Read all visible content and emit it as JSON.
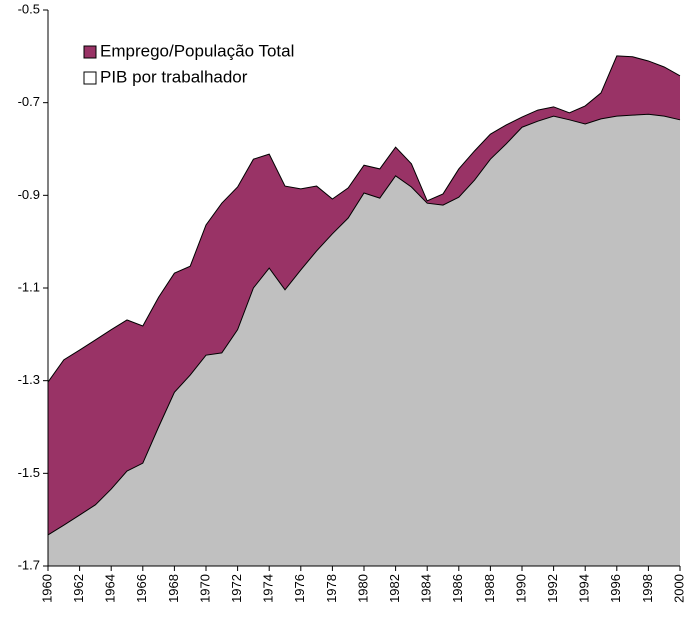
{
  "chart_data": {
    "type": "area",
    "x": [
      1960,
      1961,
      1962,
      1963,
      1964,
      1965,
      1966,
      1967,
      1968,
      1969,
      1970,
      1971,
      1972,
      1973,
      1974,
      1975,
      1976,
      1977,
      1978,
      1979,
      1980,
      1981,
      1982,
      1983,
      1984,
      1985,
      1986,
      1987,
      1988,
      1989,
      1990,
      1991,
      1992,
      1993,
      1994,
      1995,
      1996,
      1997,
      1998,
      1999,
      2000
    ],
    "xlim": [
      1960,
      2000
    ],
    "xticks": [
      1960,
      1962,
      1964,
      1966,
      1968,
      1970,
      1972,
      1974,
      1976,
      1978,
      1980,
      1982,
      1984,
      1986,
      1988,
      1990,
      1992,
      1994,
      1996,
      1998,
      2000
    ],
    "ylim": [
      -1.7,
      -0.5
    ],
    "yticks": [
      -1.7,
      -1.5,
      -1.3,
      -1.1,
      -0.9,
      -0.7,
      -0.5
    ],
    "series": [
      {
        "name": "Emprego/População Total",
        "color": "#993366",
        "legend_color": "#993366",
        "values": [
          -1.303,
          -1.255,
          -1.234,
          -1.212,
          -1.19,
          -1.169,
          -1.182,
          -1.12,
          -1.068,
          -1.053,
          -0.964,
          -0.917,
          -0.882,
          -0.822,
          -0.811,
          -0.88,
          -0.886,
          -0.88,
          -0.908,
          -0.884,
          -0.835,
          -0.843,
          -0.796,
          -0.832,
          -0.912,
          -0.897,
          -0.843,
          -0.804,
          -0.768,
          -0.748,
          -0.731,
          -0.716,
          -0.709,
          -0.722,
          -0.707,
          -0.679,
          -0.599,
          -0.601,
          -0.61,
          -0.623,
          -0.642
        ]
      },
      {
        "name": "PIB por trabalhador",
        "color": "#c0c0c0",
        "legend_color": "#ffffff",
        "values": [
          -1.633,
          -1.612,
          -1.59,
          -1.568,
          -1.534,
          -1.495,
          -1.478,
          -1.4,
          -1.325,
          -1.288,
          -1.245,
          -1.24,
          -1.19,
          -1.1,
          -1.057,
          -1.104,
          -1.061,
          -1.02,
          -0.983,
          -0.949,
          -0.895,
          -0.906,
          -0.858,
          -0.882,
          -0.917,
          -0.921,
          -0.904,
          -0.867,
          -0.822,
          -0.789,
          -0.753,
          -0.74,
          -0.729,
          -0.737,
          -0.746,
          -0.735,
          -0.729,
          -0.727,
          -0.725,
          -0.729,
          -0.737
        ]
      }
    ]
  }
}
